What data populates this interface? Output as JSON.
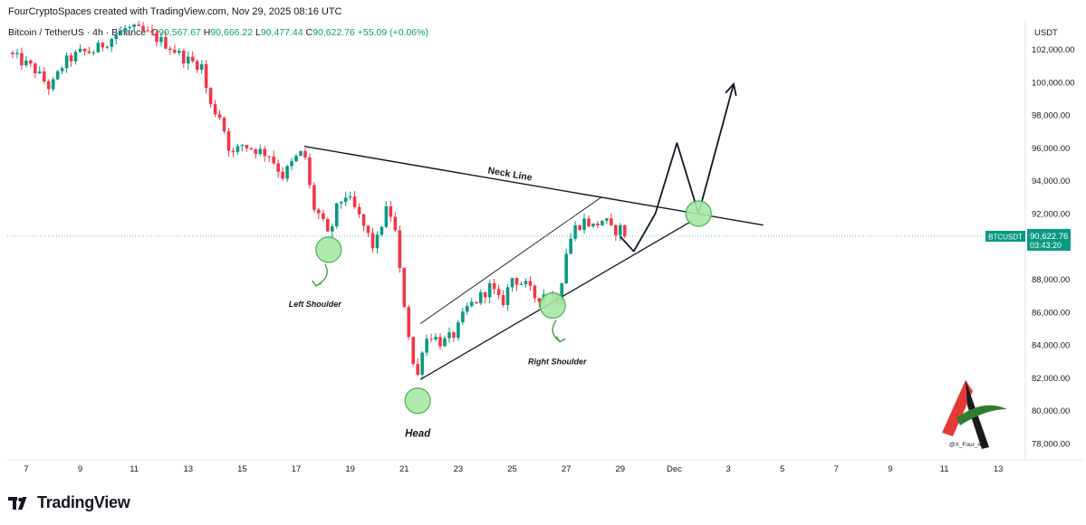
{
  "header": {
    "credit": "FourCryptoSpaces created with TradingView.com, Nov 29, 2025 08:16 UTC"
  },
  "symbol": {
    "name": "Bitcoin / TetherUS · 4h · Binance",
    "open_label": "O",
    "open_value": "90,567.67",
    "high_label": "H",
    "high_value": "90,666.22",
    "low_label": "L",
    "low_value": "90,477.44",
    "close_label": "C",
    "close_value": "90,622.76",
    "change": "+55.09 (+0.06%)"
  },
  "footer": {
    "brand": "TradingView"
  },
  "watermark": {
    "handle": "@X_Four_iv"
  },
  "colors": {
    "up": "#089981",
    "down": "#f23645",
    "marker_fill": "#a5e8a5",
    "marker_stroke": "#4caf50",
    "arrow_green": "#43a047"
  },
  "chart_data": {
    "type": "candlestick",
    "currency_label": "USDT",
    "ylim": [
      77000,
      103800
    ],
    "y_ticks": [
      "102,000.00",
      "100,000.00",
      "98,000.00",
      "96,000.00",
      "94,000.00",
      "92,000.00",
      "90,000.00",
      "88,000.00",
      "86,000.00",
      "84,000.00",
      "82,000.00",
      "80,000.00",
      "78,000.00"
    ],
    "y_tick_values": [
      102000,
      100000,
      98000,
      96000,
      94000,
      92000,
      90000,
      88000,
      86000,
      84000,
      82000,
      80000,
      78000
    ],
    "x_ticks": [
      {
        "label": "7",
        "day": 7
      },
      {
        "label": "9",
        "day": 9
      },
      {
        "label": "11",
        "day": 11
      },
      {
        "label": "13",
        "day": 13
      },
      {
        "label": "15",
        "day": 15
      },
      {
        "label": "17",
        "day": 17
      },
      {
        "label": "19",
        "day": 19
      },
      {
        "label": "21",
        "day": 21
      },
      {
        "label": "23",
        "day": 23
      },
      {
        "label": "25",
        "day": 25
      },
      {
        "label": "27",
        "day": 27
      },
      {
        "label": "29",
        "day": 29
      },
      {
        "label": "Dec",
        "day": 31
      },
      {
        "label": "3",
        "day": 33
      },
      {
        "label": "5",
        "day": 35
      },
      {
        "label": "7",
        "day": 37
      },
      {
        "label": "9",
        "day": 39
      },
      {
        "label": "11",
        "day": 41
      },
      {
        "label": "13",
        "day": 43
      }
    ],
    "last_price": {
      "symbol": "BTCUSDT",
      "price": "90,622.76",
      "countdown": "03:43:20",
      "value": 90622.76
    },
    "anchors": [
      {
        "day": 6.5,
        "price": 101600
      },
      {
        "day": 7.3,
        "price": 100800
      },
      {
        "day": 7.9,
        "price": 99600
      },
      {
        "day": 8.4,
        "price": 101200
      },
      {
        "day": 9.0,
        "price": 101800
      },
      {
        "day": 9.5,
        "price": 101900
      },
      {
        "day": 10.0,
        "price": 102500
      },
      {
        "day": 10.7,
        "price": 103300
      },
      {
        "day": 11.3,
        "price": 103100
      },
      {
        "day": 11.8,
        "price": 102700
      },
      {
        "day": 12.3,
        "price": 102200
      },
      {
        "day": 12.9,
        "price": 101400
      },
      {
        "day": 13.5,
        "price": 101000
      },
      {
        "day": 13.8,
        "price": 98600
      },
      {
        "day": 14.2,
        "price": 97900
      },
      {
        "day": 14.6,
        "price": 95500
      },
      {
        "day": 15.0,
        "price": 96200
      },
      {
        "day": 15.5,
        "price": 95900
      },
      {
        "day": 16.0,
        "price": 95600
      },
      {
        "day": 16.5,
        "price": 94300
      },
      {
        "day": 17.0,
        "price": 95400
      },
      {
        "day": 17.3,
        "price": 95800
      },
      {
        "day": 17.6,
        "price": 92500
      },
      {
        "day": 17.9,
        "price": 91800
      },
      {
        "day": 18.2,
        "price": 90500
      },
      {
        "day": 18.5,
        "price": 92300
      },
      {
        "day": 18.8,
        "price": 93200
      },
      {
        "day": 19.2,
        "price": 92200
      },
      {
        "day": 19.6,
        "price": 90900
      },
      {
        "day": 19.9,
        "price": 89800
      },
      {
        "day": 20.3,
        "price": 92200
      },
      {
        "day": 20.6,
        "price": 91800
      },
      {
        "day": 20.9,
        "price": 87500
      },
      {
        "day": 21.1,
        "price": 85500
      },
      {
        "day": 21.3,
        "price": 83000
      },
      {
        "day": 21.5,
        "price": 82100
      },
      {
        "day": 21.7,
        "price": 84200
      },
      {
        "day": 22.0,
        "price": 84600
      },
      {
        "day": 22.4,
        "price": 84100
      },
      {
        "day": 22.9,
        "price": 84700
      },
      {
        "day": 23.3,
        "price": 86200
      },
      {
        "day": 23.8,
        "price": 86900
      },
      {
        "day": 24.2,
        "price": 87600
      },
      {
        "day": 24.6,
        "price": 86400
      },
      {
        "day": 25.0,
        "price": 88100
      },
      {
        "day": 25.5,
        "price": 87600
      },
      {
        "day": 25.9,
        "price": 86800
      },
      {
        "day": 26.3,
        "price": 87300
      },
      {
        "day": 26.7,
        "price": 86700
      },
      {
        "day": 27.0,
        "price": 89700
      },
      {
        "day": 27.3,
        "price": 91100
      },
      {
        "day": 27.7,
        "price": 91600
      },
      {
        "day": 28.0,
        "price": 91200
      },
      {
        "day": 28.4,
        "price": 91700
      },
      {
        "day": 28.7,
        "price": 90900
      },
      {
        "day": 29.0,
        "price": 91100
      },
      {
        "day": 29.2,
        "price": 90623
      }
    ],
    "pattern": {
      "neckline": {
        "from": {
          "day": 17.3,
          "price": 96100
        },
        "to": {
          "day": 34.3,
          "price": 91300
        },
        "label": "Neck Line"
      },
      "channel_upper": {
        "from": {
          "day": 21.6,
          "price": 85300
        },
        "to": {
          "day": 28.3,
          "price": 93000
        }
      },
      "channel_lower": {
        "from": {
          "day": 21.6,
          "price": 81900
        },
        "to": {
          "day": 31.7,
          "price": 91600
        }
      },
      "projection": [
        {
          "day": 29.0,
          "price": 90600
        },
        {
          "day": 29.5,
          "price": 89700
        },
        {
          "day": 30.3,
          "price": 92000
        },
        {
          "day": 31.1,
          "price": 96300
        },
        {
          "day": 31.9,
          "price": 92000
        },
        {
          "day": 33.2,
          "price": 99900
        }
      ],
      "markers": [
        {
          "label": "Left Shoulder",
          "day": 18.2,
          "price": 89800
        },
        {
          "label": "Head",
          "day": 21.5,
          "price": 80600
        },
        {
          "label": "Right Shoulder",
          "day": 26.5,
          "price": 86400
        },
        {
          "label": "",
          "day": 31.9,
          "price": 92000
        }
      ]
    }
  }
}
